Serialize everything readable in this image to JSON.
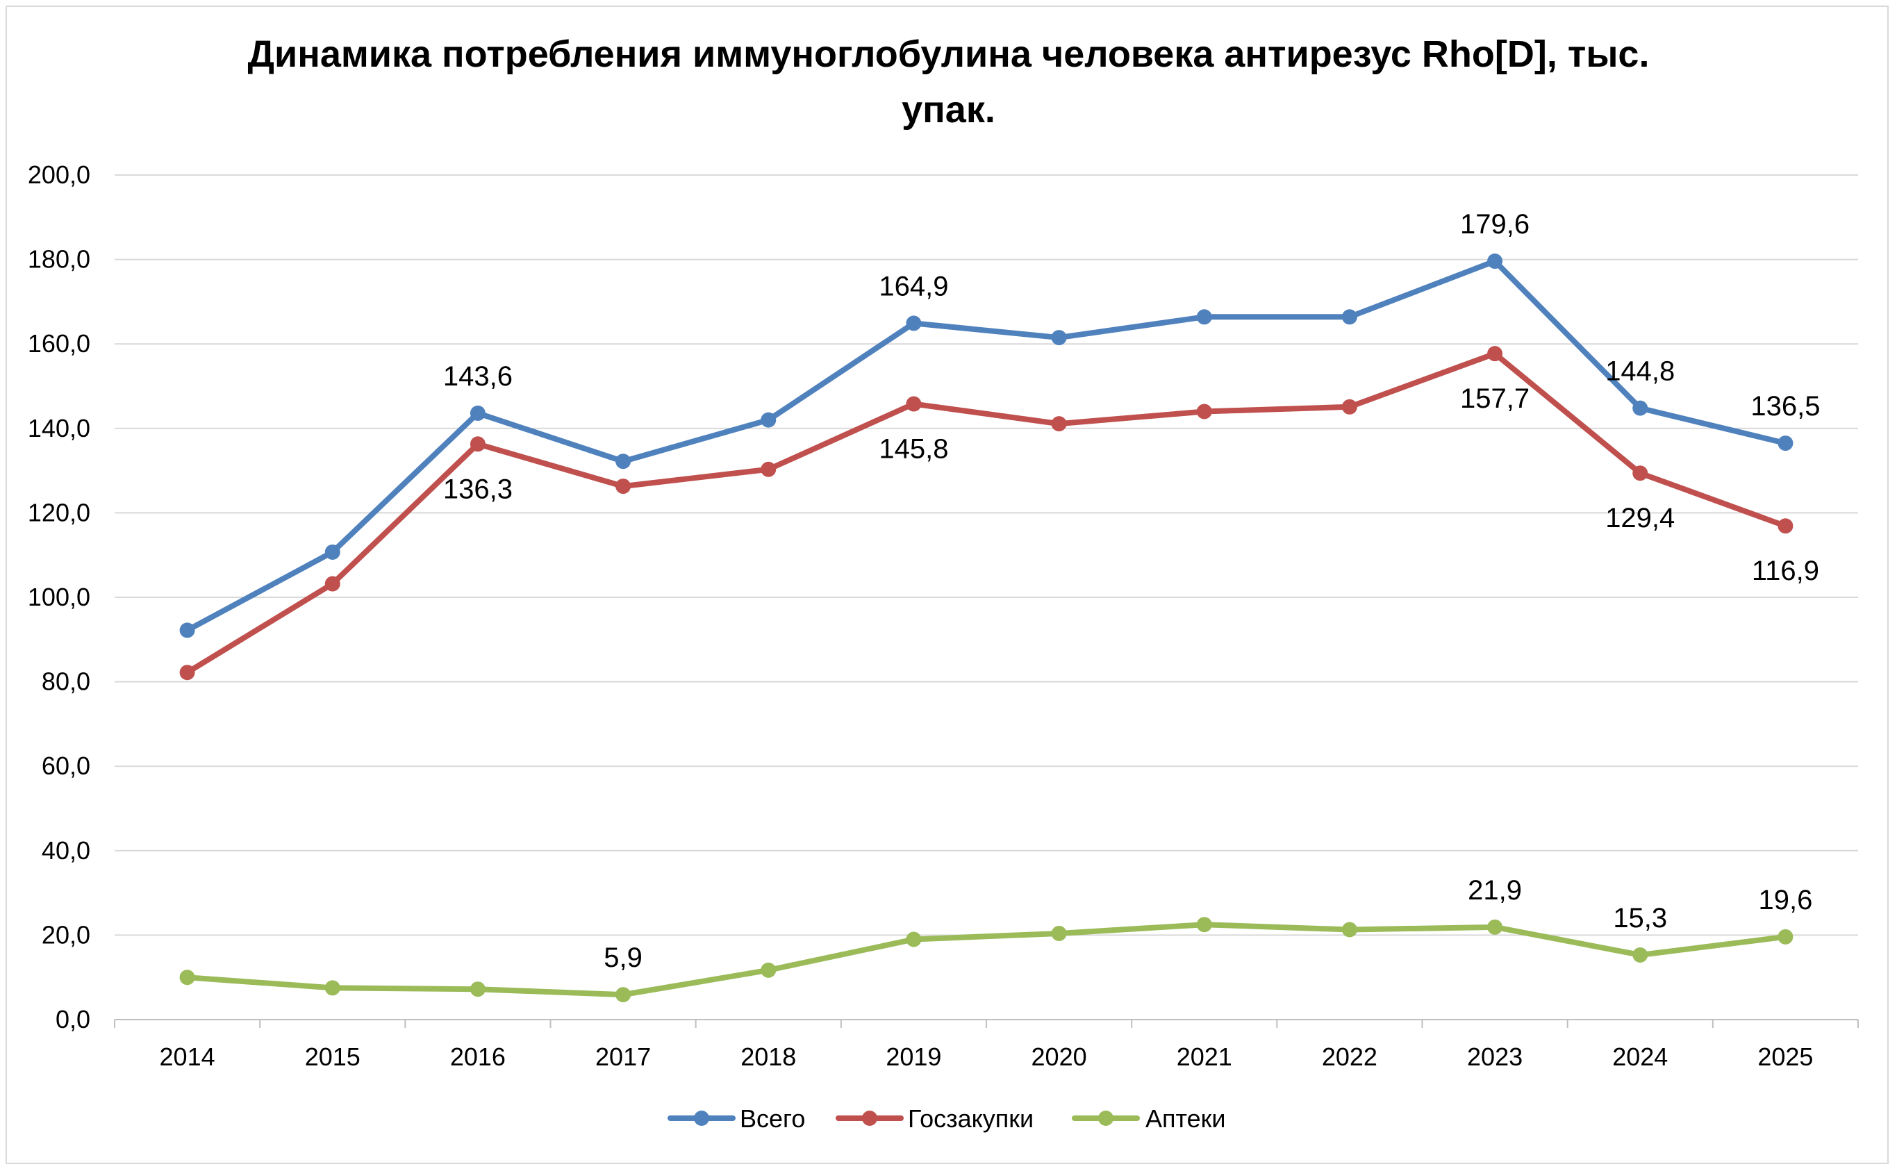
{
  "chart_data": {
    "type": "line",
    "title_line1": "Динамика потребления иммуноглобулина человека антирезус Rho[D], тыс.",
    "title_line2": "упак.",
    "xlabel": "",
    "ylabel": "",
    "ylim": [
      0,
      200
    ],
    "yticks": [
      "0,0",
      "20,0",
      "40,0",
      "60,0",
      "80,0",
      "100,0",
      "120,0",
      "140,0",
      "160,0",
      "180,0",
      "200,0"
    ],
    "categories": [
      "2014",
      "2015",
      "2016",
      "2017",
      "2018",
      "2019",
      "2020",
      "2021",
      "2022",
      "2023",
      "2024",
      "2025"
    ],
    "grid": true,
    "legend_position": "bottom",
    "series": [
      {
        "name": "Всего",
        "color": "#4f81bd",
        "values": [
          92.2,
          110.7,
          143.6,
          132.2,
          142.0,
          164.9,
          161.5,
          166.4,
          166.4,
          179.6,
          144.8,
          136.5
        ],
        "labels": [
          {
            "index": 2,
            "text": "143,6",
            "pos": "above"
          },
          {
            "index": 5,
            "text": "164,9",
            "pos": "above"
          },
          {
            "index": 9,
            "text": "179,6",
            "pos": "above"
          },
          {
            "index": 10,
            "text": "144,8",
            "pos": "above"
          },
          {
            "index": 11,
            "text": "136,5",
            "pos": "above"
          }
        ]
      },
      {
        "name": "Госзакупки",
        "color": "#c0504d",
        "values": [
          82.2,
          103.2,
          136.3,
          126.3,
          130.3,
          145.8,
          141.1,
          144.0,
          145.1,
          157.7,
          129.4,
          116.9
        ],
        "labels": [
          {
            "index": 2,
            "text": "136,3",
            "pos": "below"
          },
          {
            "index": 5,
            "text": "145,8",
            "pos": "below"
          },
          {
            "index": 9,
            "text": "157,7",
            "pos": "below"
          },
          {
            "index": 10,
            "text": "129,4",
            "pos": "below"
          },
          {
            "index": 11,
            "text": "116,9",
            "pos": "below"
          }
        ]
      },
      {
        "name": "Аптеки",
        "color": "#9bbb59",
        "values": [
          10.0,
          7.5,
          7.2,
          5.9,
          11.7,
          19.0,
          20.4,
          22.5,
          21.3,
          21.9,
          15.3,
          19.6
        ],
        "labels": [
          {
            "index": 3,
            "text": "5,9",
            "pos": "above"
          },
          {
            "index": 9,
            "text": "21,9",
            "pos": "above"
          },
          {
            "index": 10,
            "text": "15,3",
            "pos": "above"
          },
          {
            "index": 11,
            "text": "19,6",
            "pos": "above"
          }
        ]
      }
    ]
  }
}
